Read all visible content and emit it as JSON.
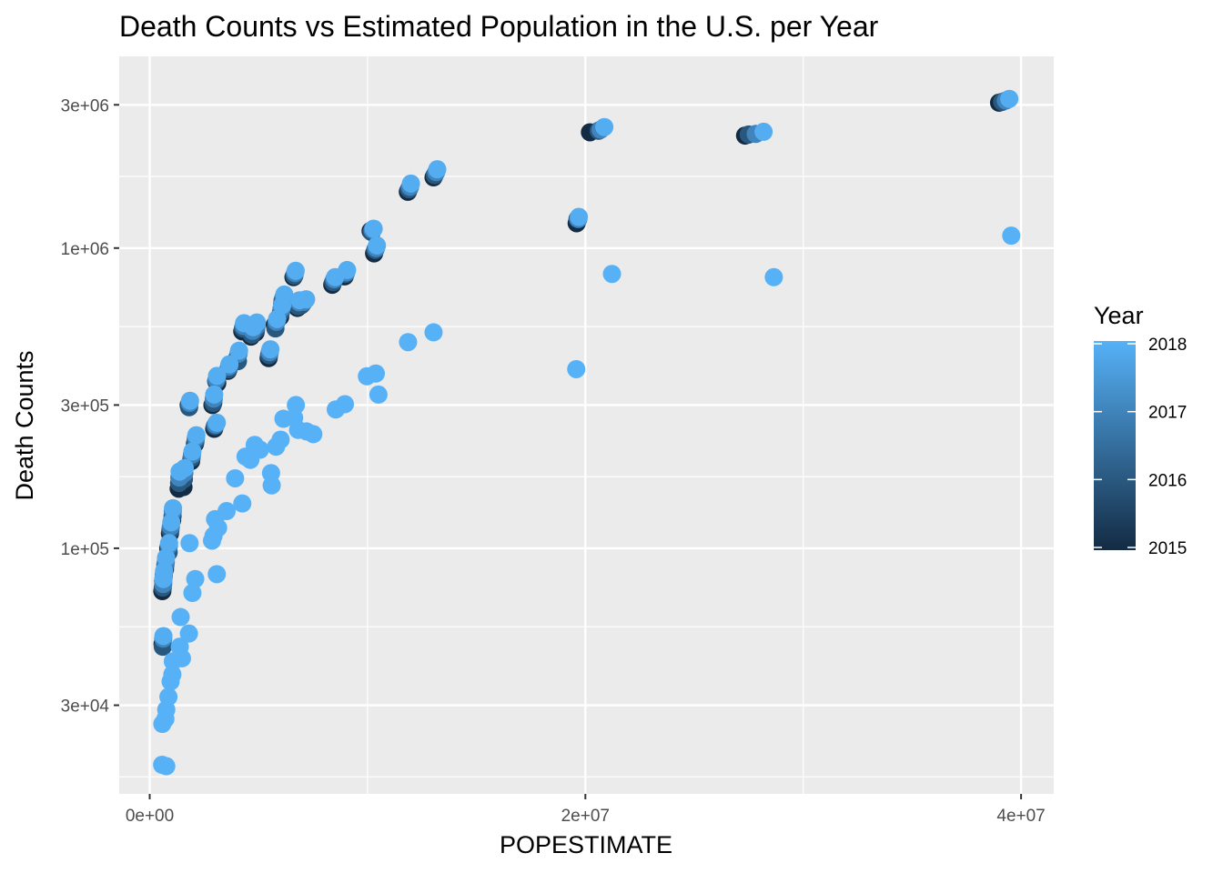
{
  "chart_data": {
    "type": "scatter",
    "title": "Death Counts vs Estimated Population in the U.S. per Year",
    "xlabel": "POPESTIMATE",
    "ylabel": "Death Counts",
    "x_scale": "linear",
    "y_scale": "log10",
    "xlim": [
      -1400000,
      41500000
    ],
    "ylim": [
      15200,
      4350000
    ],
    "x_ticks": [
      {
        "value": 0,
        "label": "0e+00"
      },
      {
        "value": 20000000,
        "label": "2e+07"
      },
      {
        "value": 40000000,
        "label": "4e+07"
      }
    ],
    "x_minor_ticks": [
      10000000,
      30000000
    ],
    "y_ticks": [
      {
        "value": 30000,
        "label": "3e+04"
      },
      {
        "value": 100000,
        "label": "1e+05"
      },
      {
        "value": 300000,
        "label": "3e+05"
      },
      {
        "value": 1000000,
        "label": "1e+06"
      },
      {
        "value": 3000000,
        "label": "3e+06"
      }
    ],
    "y_minor_ticks": [
      17320,
      54770,
      173200,
      547700,
      1732000
    ],
    "grid": true,
    "color_low": "#132B43",
    "color_high": "#56B1F7",
    "legend": {
      "title": "Year",
      "placement": "right",
      "min": 2015,
      "max": 2018,
      "ticks": [
        {
          "value": 2018,
          "label": "2018"
        },
        {
          "value": 2017,
          "label": "2017"
        },
        {
          "value": 2016,
          "label": "2016"
        },
        {
          "value": 2015,
          "label": "2015"
        }
      ]
    },
    "series": [
      {
        "year": 2015,
        "points": [
          [
            590000,
            48000
          ],
          [
            580000,
            72000
          ],
          [
            620000,
            78000
          ],
          [
            700000,
            85000
          ],
          [
            850000,
            100000
          ],
          [
            930000,
            112000
          ],
          [
            1030000,
            124000
          ],
          [
            1330000,
            158000
          ],
          [
            1550000,
            160000
          ],
          [
            1790000,
            300000
          ],
          [
            1900000,
            195000
          ],
          [
            2080000,
            223000
          ],
          [
            2880000,
            300000
          ],
          [
            2960000,
            250000
          ],
          [
            3100000,
            355000
          ],
          [
            3590000,
            390000
          ],
          [
            4020000,
            430000
          ],
          [
            4250000,
            528000
          ],
          [
            4650000,
            507000
          ],
          [
            4860000,
            523000
          ],
          [
            5460000,
            430000
          ],
          [
            5740000,
            555000
          ],
          [
            5990000,
            590000
          ],
          [
            6080000,
            650000
          ],
          [
            6600000,
            800000
          ],
          [
            6780000,
            632000
          ],
          [
            6950000,
            645000
          ],
          [
            8380000,
            755000
          ],
          [
            8950000,
            805000
          ],
          [
            10140000,
            1140000
          ],
          [
            10300000,
            960000
          ],
          [
            11850000,
            1540000
          ],
          [
            13030000,
            1720000
          ],
          [
            19600000,
            1210000
          ],
          [
            20210000,
            2430000
          ],
          [
            27330000,
            2370000
          ],
          [
            38990000,
            3050000
          ]
        ]
      },
      {
        "year": 2016,
        "points": [
          [
            600000,
            47000
          ],
          [
            600000,
            74000
          ],
          [
            640000,
            80000
          ],
          [
            720000,
            88000
          ],
          [
            870000,
            97000
          ],
          [
            950000,
            115000
          ],
          [
            1050000,
            128000
          ],
          [
            1350000,
            165000
          ],
          [
            1570000,
            170000
          ],
          [
            1810000,
            295000
          ],
          [
            1920000,
            200000
          ],
          [
            2100000,
            227000
          ],
          [
            2920000,
            305000
          ],
          [
            2990000,
            255000
          ],
          [
            3050000,
            360000
          ],
          [
            3620000,
            395000
          ],
          [
            4050000,
            420000
          ],
          [
            4280000,
            540000
          ],
          [
            4690000,
            515000
          ],
          [
            4880000,
            535000
          ],
          [
            5480000,
            440000
          ],
          [
            5770000,
            540000
          ],
          [
            6020000,
            610000
          ],
          [
            6100000,
            670000
          ],
          [
            6640000,
            810000
          ],
          [
            6810000,
            640000
          ],
          [
            7000000,
            650000
          ],
          [
            8420000,
            770000
          ],
          [
            8990000,
            820000
          ],
          [
            10190000,
            1130000
          ],
          [
            10350000,
            985000
          ],
          [
            11900000,
            1570000
          ],
          [
            13080000,
            1750000
          ],
          [
            19640000,
            1250000
          ],
          [
            20610000,
            2460000
          ],
          [
            27500000,
            2390000
          ],
          [
            39130000,
            3070000
          ]
        ]
      },
      {
        "year": 2017,
        "points": [
          [
            620000,
            50000
          ],
          [
            620000,
            76000
          ],
          [
            650000,
            82000
          ],
          [
            740000,
            90000
          ],
          [
            880000,
            102000
          ],
          [
            970000,
            118000
          ],
          [
            1060000,
            133000
          ],
          [
            1360000,
            172000
          ],
          [
            1590000,
            178000
          ],
          [
            1830000,
            305000
          ],
          [
            1940000,
            205000
          ],
          [
            2120000,
            233000
          ],
          [
            2940000,
            315000
          ],
          [
            3030000,
            258000
          ],
          [
            3070000,
            365000
          ],
          [
            3640000,
            403000
          ],
          [
            4080000,
            445000
          ],
          [
            4310000,
            550000
          ],
          [
            4720000,
            530000
          ],
          [
            4900000,
            550000
          ],
          [
            5510000,
            450000
          ],
          [
            5820000,
            568000
          ],
          [
            6050000,
            628000
          ],
          [
            6140000,
            685000
          ],
          [
            6670000,
            826000
          ],
          [
            6850000,
            660000
          ],
          [
            7080000,
            662000
          ],
          [
            8470000,
            787000
          ],
          [
            9020000,
            830000
          ],
          [
            10230000,
            1150000
          ],
          [
            10390000,
            1000000
          ],
          [
            11950000,
            1600000
          ],
          [
            13150000,
            1790000
          ],
          [
            19680000,
            1250000
          ],
          [
            20700000,
            2480000
          ],
          [
            27820000,
            2400000
          ],
          [
            39300000,
            3100000
          ]
        ]
      },
      {
        "year": 2017.9,
        "points": [
          [
            630000,
            51000
          ],
          [
            630000,
            79000
          ],
          [
            660000,
            84000
          ],
          [
            750000,
            93000
          ],
          [
            890000,
            104000
          ],
          [
            990000,
            122000
          ],
          [
            1070000,
            136000
          ],
          [
            1370000,
            180000
          ],
          [
            1610000,
            185000
          ],
          [
            1850000,
            310000
          ],
          [
            1960000,
            210000
          ],
          [
            2140000,
            238000
          ],
          [
            2960000,
            325000
          ],
          [
            3080000,
            262000
          ],
          [
            3090000,
            375000
          ],
          [
            3660000,
            410000
          ],
          [
            4100000,
            455000
          ],
          [
            4330000,
            562000
          ],
          [
            4750000,
            545000
          ],
          [
            4920000,
            565000
          ],
          [
            5540000,
            460000
          ],
          [
            5850000,
            580000
          ],
          [
            6080000,
            645000
          ],
          [
            6180000,
            700000
          ],
          [
            6700000,
            840000
          ],
          [
            6880000,
            670000
          ],
          [
            7180000,
            675000
          ],
          [
            8510000,
            800000
          ],
          [
            9060000,
            845000
          ],
          [
            10280000,
            1160000
          ],
          [
            10430000,
            1020000
          ],
          [
            11990000,
            1640000
          ],
          [
            13200000,
            1830000
          ],
          [
            19700000,
            1270000
          ],
          [
            20870000,
            2530000
          ],
          [
            28180000,
            2440000
          ],
          [
            39460000,
            3140000
          ]
        ]
      },
      {
        "year": 2018,
        "points": [
          [
            570000,
            19000
          ],
          [
            760000,
            18800
          ],
          [
            580000,
            26000
          ],
          [
            720000,
            27000
          ],
          [
            760000,
            29000
          ],
          [
            860000,
            32000
          ],
          [
            960000,
            36000
          ],
          [
            1040000,
            38000
          ],
          [
            1060000,
            42000
          ],
          [
            1380000,
            47000
          ],
          [
            1480000,
            43000
          ],
          [
            1420000,
            59000
          ],
          [
            1800000,
            52000
          ],
          [
            1960000,
            71000
          ],
          [
            2090000,
            79000
          ],
          [
            1830000,
            104000
          ],
          [
            2860000,
            106000
          ],
          [
            2930000,
            110000
          ],
          [
            3140000,
            117000
          ],
          [
            3000000,
            125000
          ],
          [
            3080000,
            82000
          ],
          [
            3530000,
            133000
          ],
          [
            3920000,
            171000
          ],
          [
            4250000,
            141000
          ],
          [
            4400000,
            202000
          ],
          [
            4620000,
            197000
          ],
          [
            4820000,
            221000
          ],
          [
            5060000,
            213000
          ],
          [
            5570000,
            178000
          ],
          [
            5600000,
            162000
          ],
          [
            5800000,
            218000
          ],
          [
            6010000,
            230000
          ],
          [
            6140000,
            270000
          ],
          [
            6630000,
            272000
          ],
          [
            6710000,
            300000
          ],
          [
            6810000,
            248000
          ],
          [
            7200000,
            245000
          ],
          [
            7510000,
            240000
          ],
          [
            8540000,
            290000
          ],
          [
            8960000,
            302000
          ],
          [
            9970000,
            374000
          ],
          [
            10380000,
            382000
          ],
          [
            10500000,
            325000
          ],
          [
            11860000,
            486000
          ],
          [
            13030000,
            524000
          ],
          [
            19580000,
            395000
          ],
          [
            21220000,
            820000
          ],
          [
            28650000,
            800000
          ],
          [
            39550000,
            1100000
          ]
        ]
      }
    ]
  }
}
